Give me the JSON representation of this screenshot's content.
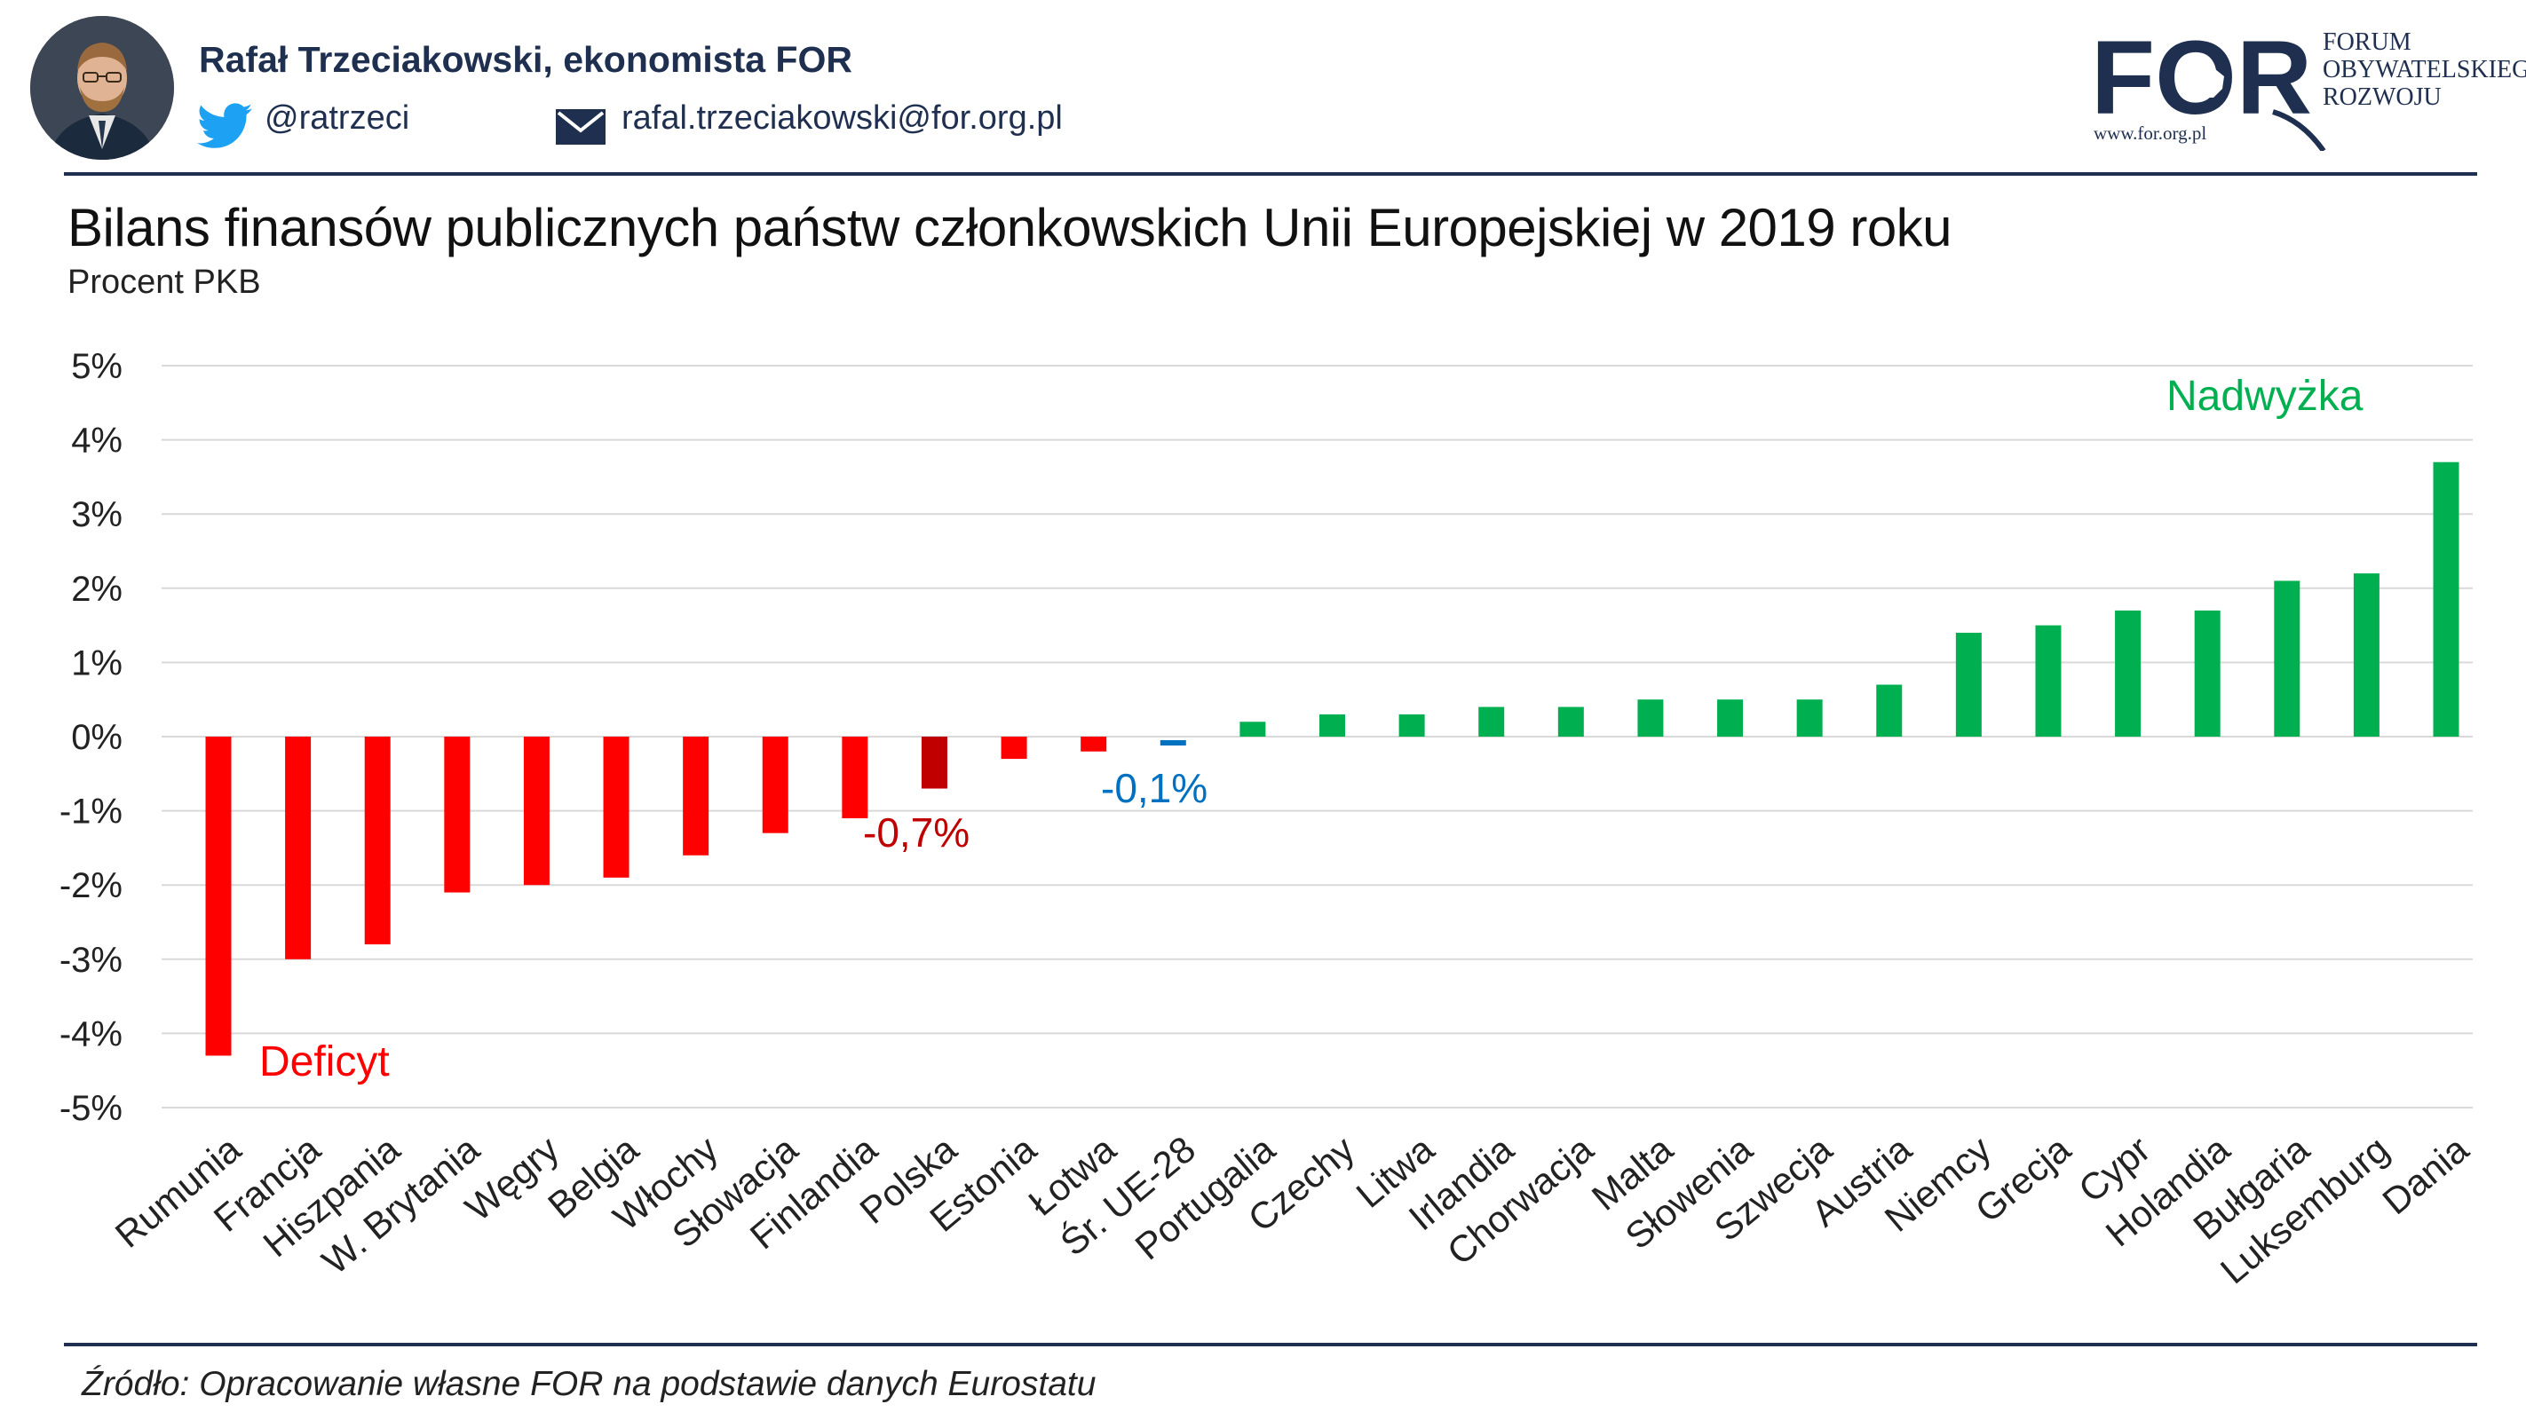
{
  "header": {
    "author": "Rafał Trzeciakowski, ekonomista FOR",
    "twitter_handle": "@ratrzeci",
    "email": "rafal.trzeciakowski@for.org.pl",
    "logo": {
      "mark": "FOR",
      "line1": "FORUM",
      "line2": "OBYWATELSKIEGO",
      "line3": "ROZWOJU",
      "url": "www.for.org.pl",
      "color": "#1f2f4f"
    }
  },
  "icons": {
    "twitter": "twitter-bird-icon",
    "mail": "envelope-icon"
  },
  "chart_data": {
    "type": "bar",
    "title": "Bilans finansów publicznych państw członkowskich Unii Europejskiej w 2019 roku",
    "subtitle": "Procent PKB",
    "xlabel": "",
    "ylabel": "",
    "ylim": [
      -5,
      5
    ],
    "yticks": [
      5,
      4,
      3,
      2,
      1,
      0,
      -1,
      -2,
      -3,
      -4,
      -5
    ],
    "ytick_labels": [
      "5%",
      "4%",
      "3%",
      "2%",
      "1%",
      "0%",
      "-1%",
      "-2%",
      "-3%",
      "-4%",
      "-5%"
    ],
    "grid": true,
    "legend": "none",
    "categories": [
      "Rumunia",
      "Francja",
      "Hiszpania",
      "W. Brytania",
      "Węgry",
      "Belgia",
      "Włochy",
      "Słowacja",
      "Finlandia",
      "Polska",
      "Estonia",
      "Łotwa",
      "Śr. UE-28",
      "Portugalia",
      "Czechy",
      "Litwa",
      "Irlandia",
      "Chorwacja",
      "Malta",
      "Słowenia",
      "Szwecja",
      "Austria",
      "Niemcy",
      "Grecja",
      "Cypr",
      "Holandia",
      "Bułgaria",
      "Luksemburg",
      "Dania"
    ],
    "values": [
      -4.3,
      -3.0,
      -2.8,
      -2.1,
      -2.0,
      -1.9,
      -1.6,
      -1.3,
      -1.1,
      -0.7,
      -0.3,
      -0.2,
      -0.1,
      0.2,
      0.3,
      0.3,
      0.4,
      0.4,
      0.5,
      0.5,
      0.5,
      0.7,
      1.4,
      1.5,
      1.7,
      1.7,
      2.1,
      2.2,
      3.7
    ],
    "colors": {
      "deficit": "#ff0000",
      "surplus": "#00b050",
      "highlight_poland": "#c00000",
      "highlight_eu": "#0070c0",
      "grid": "#d9d9d9"
    },
    "annotations": [
      {
        "text": "Deficyt",
        "color": "#ff0000"
      },
      {
        "text": "Nadwyżka",
        "color": "#00b050"
      },
      {
        "text": "-0,7%",
        "color": "#c00000"
      },
      {
        "text": "-0,1%",
        "color": "#0070c0"
      }
    ]
  },
  "footer": {
    "source": "Źródło: Opracowanie własne FOR na podstawie danych Eurostatu"
  }
}
